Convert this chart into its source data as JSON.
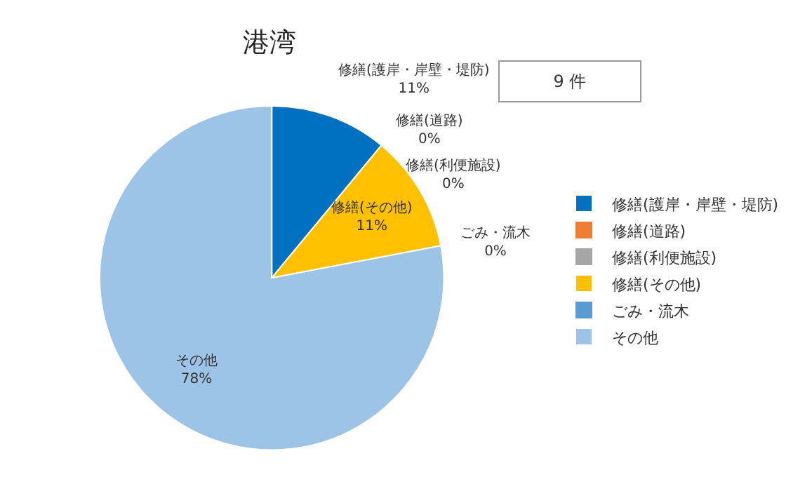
{
  "chart_data": {
    "type": "pie",
    "title": "港湾",
    "categories": [
      "修繕(護岸・岸壁・堤防)",
      "修繕(道路)",
      "修繕(利便施設)",
      "修繕(その他)",
      "ごみ・流木",
      "その他"
    ],
    "values": [
      11,
      0,
      0,
      11,
      0,
      78
    ],
    "value_labels": [
      "11%",
      "0%",
      "0%",
      "11%",
      "0%",
      "78%"
    ],
    "colors": [
      "#0070c0",
      "#ed7d31",
      "#a5a5a5",
      "#ffc000",
      "#5b9bd5",
      "#9dc3e6"
    ],
    "annotations": [
      "9 件"
    ],
    "legend": "right"
  }
}
